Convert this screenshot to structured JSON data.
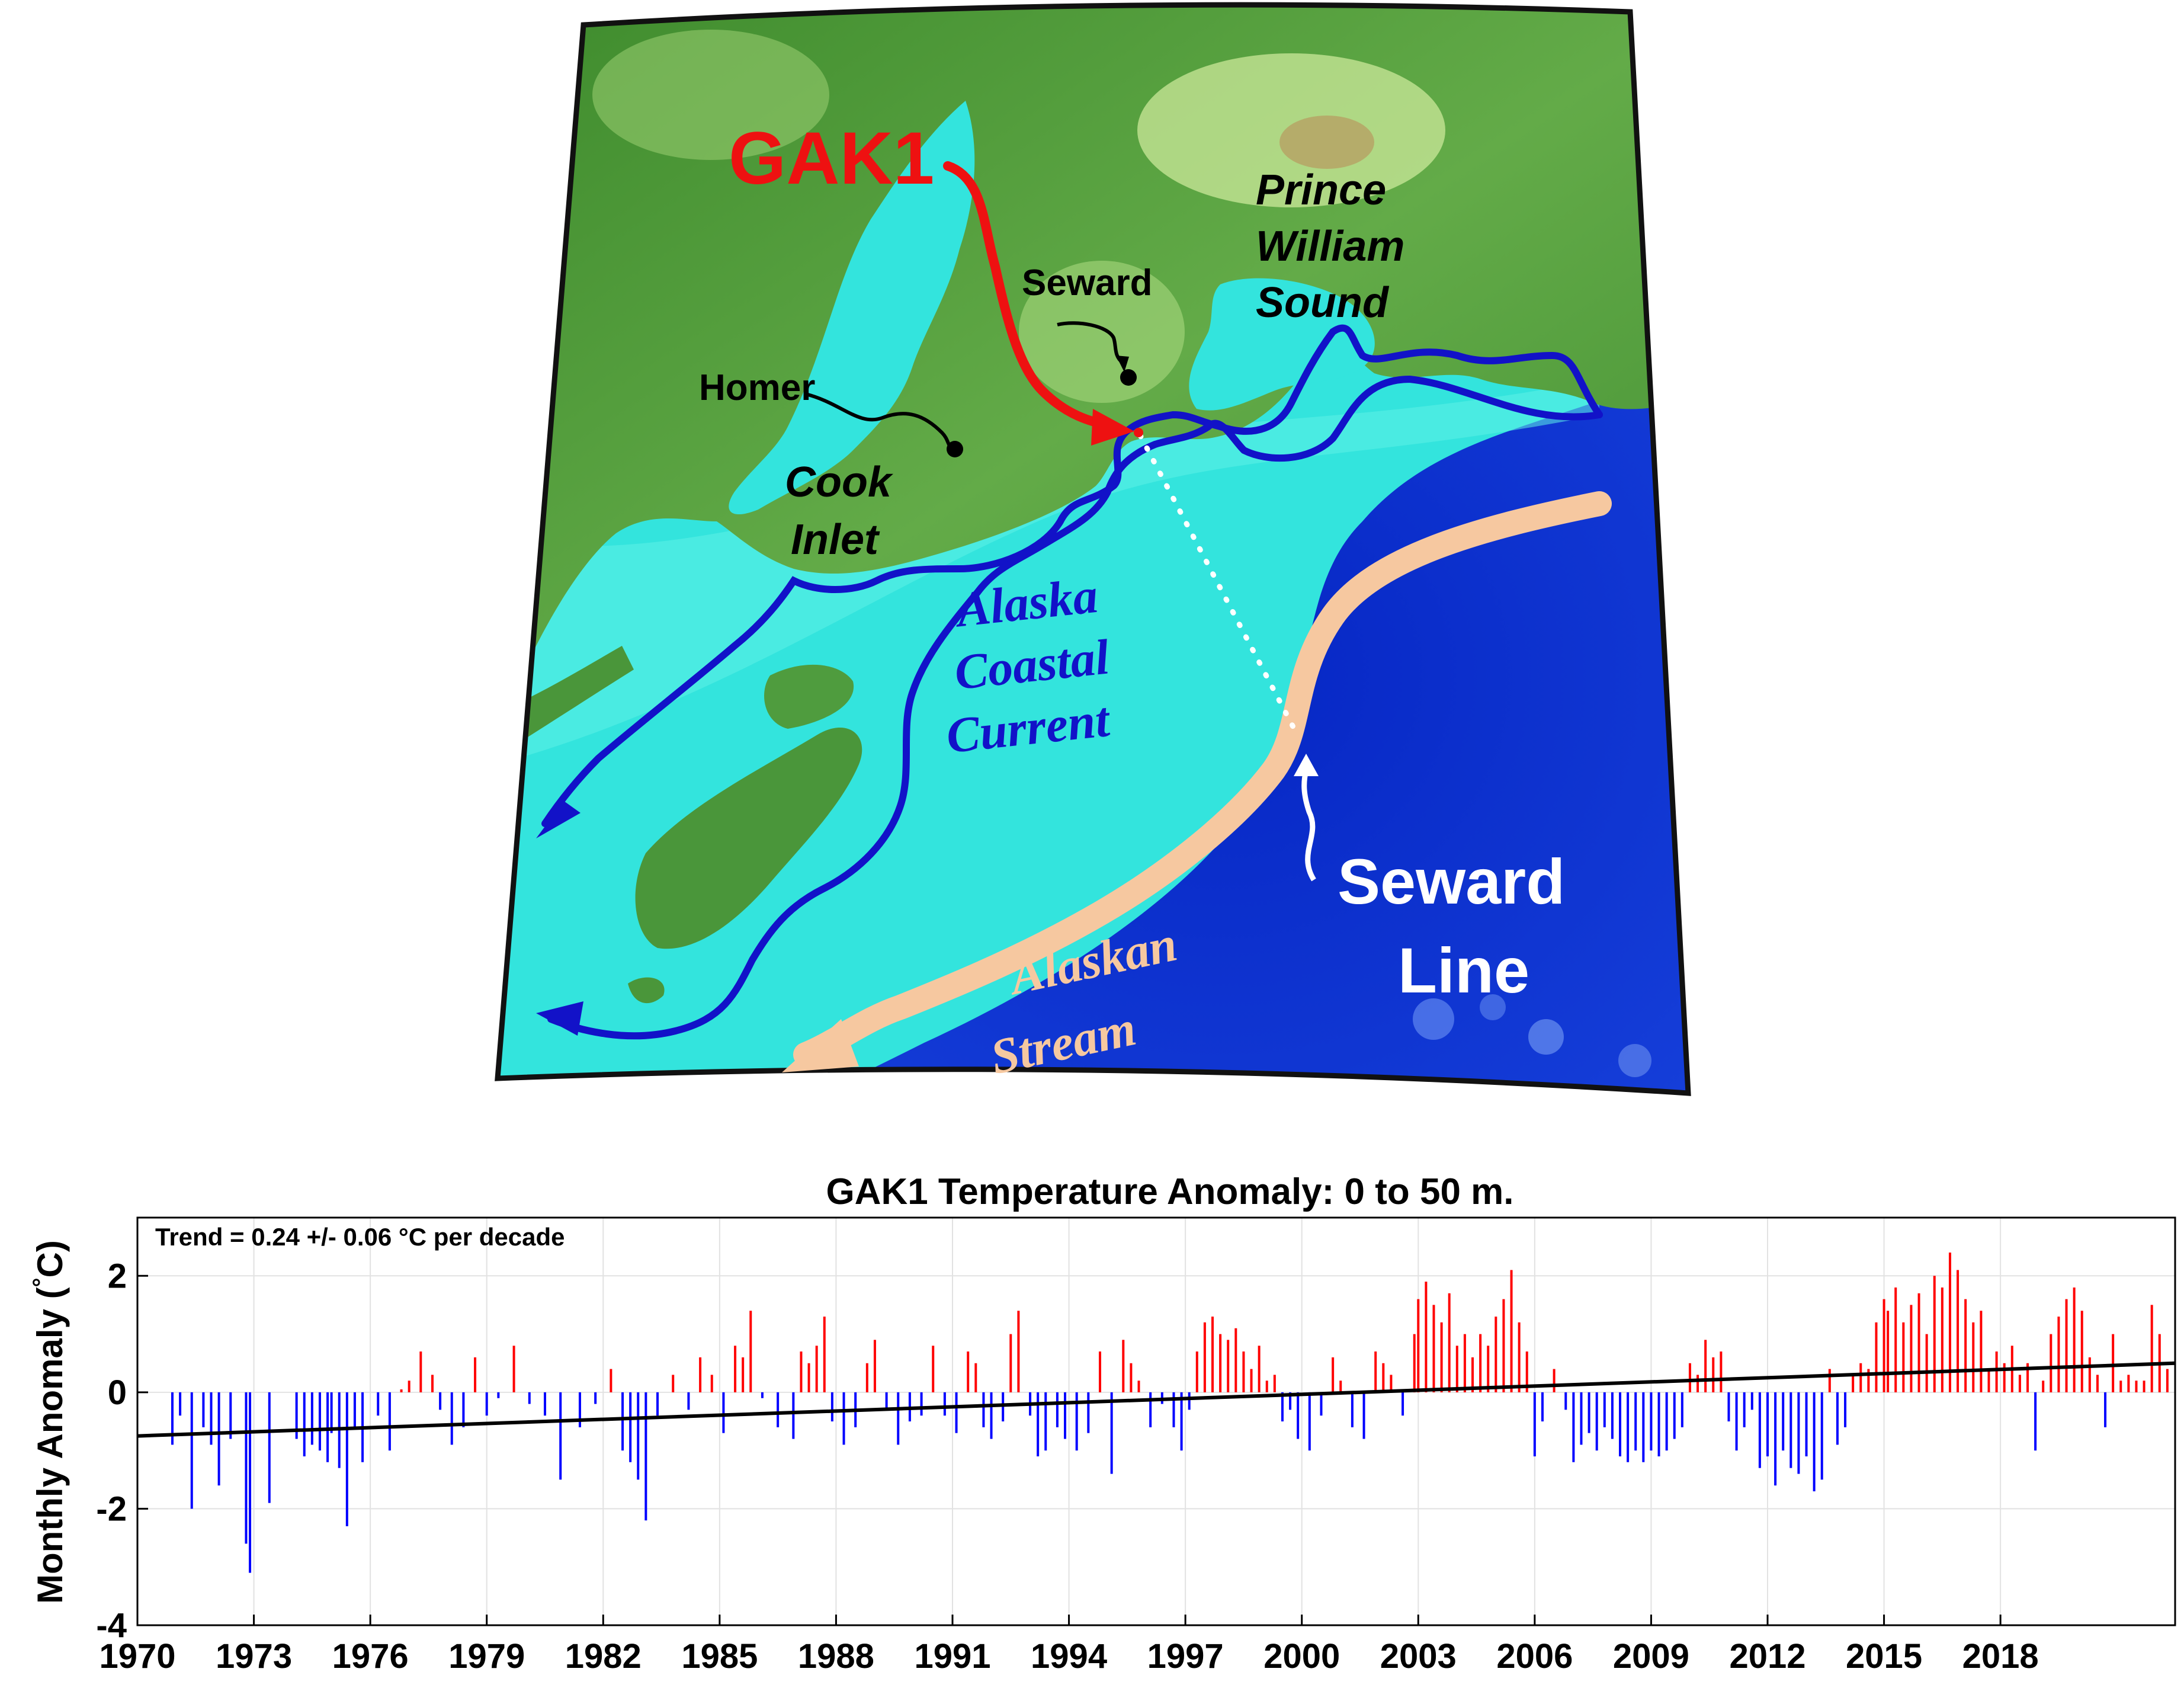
{
  "map": {
    "labels": {
      "gak1": "GAK1",
      "seward": "Seward",
      "homer": "Homer",
      "prince1": "Prince",
      "prince2": "William",
      "prince3": "Sound",
      "cook1": "Cook",
      "cook2": "Inlet",
      "acc1": "Alaska",
      "acc2": "Coastal",
      "acc3": "Current",
      "sline1": "Seward",
      "sline2": "Line",
      "stream1": "Alaskan",
      "stream2": "Stream"
    },
    "colors": {
      "land": "#4f9a3c",
      "land_high": "#d9eea8",
      "shelf": "#33e6e0",
      "deep": "#0a2fc8",
      "current": "#1010cc",
      "stream": "#f7c9a0",
      "gak1": "#ee1111"
    }
  },
  "chart_data": {
    "type": "bar",
    "title": "GAK1 Temperature Anomaly: 0 to 50 m.",
    "ylabel": "Monthly Anomaly (°C)",
    "ylabel_main": "Monthly Anomaly (",
    "ylabel_deg": "°",
    "ylabel_unit": "C)",
    "annotation": "Trend = 0.24 +/- 0.06 °C per decade",
    "xlim": [
      1970,
      2022.5
    ],
    "ylim": [
      -4,
      3
    ],
    "x_ticks": [
      "1970",
      "1973",
      "1976",
      "1979",
      "1982",
      "1985",
      "1988",
      "1991",
      "1994",
      "1997",
      "2000",
      "2003",
      "2006",
      "2009",
      "2012",
      "2015",
      "2018"
    ],
    "y_ticks": [
      "-4",
      "-2",
      "0",
      "2"
    ],
    "grid": true,
    "positive_color": "#ff0000",
    "negative_color": "#0000ff",
    "trend": {
      "x": [
        1970,
        2022.5
      ],
      "y": [
        -0.75,
        0.5
      ]
    },
    "data": [
      [
        1970.9,
        -0.9
      ],
      [
        1971.1,
        -0.4
      ],
      [
        1971.4,
        -2.0
      ],
      [
        1971.7,
        -0.6
      ],
      [
        1971.9,
        -0.9
      ],
      [
        1972.1,
        -1.6
      ],
      [
        1972.4,
        -0.8
      ],
      [
        1972.8,
        -2.6
      ],
      [
        1972.9,
        -3.1
      ],
      [
        1973.4,
        -1.9
      ],
      [
        1974.1,
        -0.8
      ],
      [
        1974.3,
        -1.1
      ],
      [
        1974.5,
        -0.9
      ],
      [
        1974.7,
        -1.0
      ],
      [
        1974.9,
        -1.2
      ],
      [
        1975.0,
        -0.7
      ],
      [
        1975.2,
        -1.3
      ],
      [
        1975.4,
        -2.3
      ],
      [
        1975.6,
        -0.6
      ],
      [
        1975.8,
        -1.2
      ],
      [
        1976.2,
        -0.4
      ],
      [
        1976.5,
        -1.0
      ],
      [
        1976.8,
        0.05
      ],
      [
        1977.0,
        0.2
      ],
      [
        1977.3,
        0.7
      ],
      [
        1977.6,
        0.3
      ],
      [
        1977.8,
        -0.3
      ],
      [
        1978.1,
        -0.9
      ],
      [
        1978.4,
        -0.6
      ],
      [
        1978.7,
        0.6
      ],
      [
        1979.0,
        -0.4
      ],
      [
        1979.3,
        -0.1
      ],
      [
        1979.7,
        0.8
      ],
      [
        1980.1,
        -0.2
      ],
      [
        1980.5,
        -0.4
      ],
      [
        1980.9,
        -1.5
      ],
      [
        1981.4,
        -0.6
      ],
      [
        1981.8,
        -0.2
      ],
      [
        1982.2,
        0.4
      ],
      [
        1982.5,
        -1.0
      ],
      [
        1982.7,
        -1.2
      ],
      [
        1982.9,
        -1.5
      ],
      [
        1983.1,
        -2.2
      ],
      [
        1983.4,
        -0.4
      ],
      [
        1983.8,
        0.3
      ],
      [
        1984.2,
        -0.3
      ],
      [
        1984.5,
        0.6
      ],
      [
        1984.8,
        0.3
      ],
      [
        1985.1,
        -0.7
      ],
      [
        1985.4,
        0.8
      ],
      [
        1985.6,
        0.6
      ],
      [
        1985.8,
        1.4
      ],
      [
        1986.1,
        -0.1
      ],
      [
        1986.5,
        -0.6
      ],
      [
        1986.9,
        -0.8
      ],
      [
        1987.1,
        0.7
      ],
      [
        1987.3,
        0.5
      ],
      [
        1987.5,
        0.8
      ],
      [
        1987.7,
        1.3
      ],
      [
        1987.9,
        -0.5
      ],
      [
        1988.2,
        -0.9
      ],
      [
        1988.5,
        -0.6
      ],
      [
        1988.8,
        0.5
      ],
      [
        1989.0,
        0.9
      ],
      [
        1989.3,
        -0.3
      ],
      [
        1989.6,
        -0.9
      ],
      [
        1989.9,
        -0.5
      ],
      [
        1990.2,
        -0.4
      ],
      [
        1990.5,
        0.8
      ],
      [
        1990.8,
        -0.4
      ],
      [
        1991.1,
        -0.7
      ],
      [
        1991.4,
        0.7
      ],
      [
        1991.6,
        0.5
      ],
      [
        1991.8,
        -0.6
      ],
      [
        1992.0,
        -0.8
      ],
      [
        1992.3,
        -0.5
      ],
      [
        1992.5,
        1.0
      ],
      [
        1992.7,
        1.4
      ],
      [
        1993.0,
        -0.4
      ],
      [
        1993.2,
        -1.1
      ],
      [
        1993.4,
        -1.0
      ],
      [
        1993.7,
        -0.6
      ],
      [
        1993.9,
        -0.8
      ],
      [
        1994.2,
        -1.0
      ],
      [
        1994.5,
        -0.7
      ],
      [
        1994.8,
        0.7
      ],
      [
        1995.1,
        -1.4
      ],
      [
        1995.4,
        0.9
      ],
      [
        1995.6,
        0.5
      ],
      [
        1995.8,
        0.2
      ],
      [
        1996.1,
        -0.6
      ],
      [
        1996.4,
        -0.2
      ],
      [
        1996.7,
        -0.6
      ],
      [
        1996.9,
        -1.0
      ],
      [
        1997.1,
        -0.3
      ],
      [
        1997.3,
        0.7
      ],
      [
        1997.5,
        1.2
      ],
      [
        1997.7,
        1.3
      ],
      [
        1997.9,
        1.0
      ],
      [
        1998.1,
        0.9
      ],
      [
        1998.3,
        1.1
      ],
      [
        1998.5,
        0.7
      ],
      [
        1998.7,
        0.4
      ],
      [
        1998.9,
        0.8
      ],
      [
        1999.1,
        0.2
      ],
      [
        1999.3,
        0.3
      ],
      [
        1999.5,
        -0.5
      ],
      [
        1999.7,
        -0.3
      ],
      [
        1999.9,
        -0.8
      ],
      [
        2000.2,
        -1.0
      ],
      [
        2000.5,
        -0.4
      ],
      [
        2000.8,
        0.6
      ],
      [
        2001.0,
        0.2
      ],
      [
        2001.3,
        -0.6
      ],
      [
        2001.6,
        -0.8
      ],
      [
        2001.9,
        0.7
      ],
      [
        2002.1,
        0.5
      ],
      [
        2002.3,
        0.3
      ],
      [
        2002.6,
        -0.4
      ],
      [
        2002.9,
        1.0
      ],
      [
        2003.0,
        1.6
      ],
      [
        2003.2,
        1.9
      ],
      [
        2003.4,
        1.5
      ],
      [
        2003.6,
        1.2
      ],
      [
        2003.8,
        1.7
      ],
      [
        2004.0,
        0.8
      ],
      [
        2004.2,
        1.0
      ],
      [
        2004.4,
        0.6
      ],
      [
        2004.6,
        1.0
      ],
      [
        2004.8,
        0.8
      ],
      [
        2005.0,
        1.3
      ],
      [
        2005.2,
        1.6
      ],
      [
        2005.4,
        2.1
      ],
      [
        2005.6,
        1.2
      ],
      [
        2005.8,
        0.7
      ],
      [
        2006.0,
        -1.1
      ],
      [
        2006.2,
        -0.5
      ],
      [
        2006.5,
        0.4
      ],
      [
        2006.8,
        -0.3
      ],
      [
        2007.0,
        -1.2
      ],
      [
        2007.2,
        -0.9
      ],
      [
        2007.4,
        -0.7
      ],
      [
        2007.6,
        -1.0
      ],
      [
        2007.8,
        -0.6
      ],
      [
        2008.0,
        -0.8
      ],
      [
        2008.2,
        -1.1
      ],
      [
        2008.4,
        -1.2
      ],
      [
        2008.6,
        -1.0
      ],
      [
        2008.8,
        -1.2
      ],
      [
        2009.0,
        -1.0
      ],
      [
        2009.2,
        -1.1
      ],
      [
        2009.4,
        -1.0
      ],
      [
        2009.6,
        -0.8
      ],
      [
        2009.8,
        -0.6
      ],
      [
        2010.0,
        0.5
      ],
      [
        2010.2,
        0.3
      ],
      [
        2010.4,
        0.9
      ],
      [
        2010.6,
        0.6
      ],
      [
        2010.8,
        0.7
      ],
      [
        2011.0,
        -0.5
      ],
      [
        2011.2,
        -1.0
      ],
      [
        2011.4,
        -0.6
      ],
      [
        2011.6,
        -0.3
      ],
      [
        2011.8,
        -1.3
      ],
      [
        2012.0,
        -1.1
      ],
      [
        2012.2,
        -1.6
      ],
      [
        2012.4,
        -1.0
      ],
      [
        2012.6,
        -1.3
      ],
      [
        2012.8,
        -1.4
      ],
      [
        2013.0,
        -1.1
      ],
      [
        2013.2,
        -1.7
      ],
      [
        2013.4,
        -1.5
      ],
      [
        2013.6,
        0.4
      ],
      [
        2013.8,
        -0.9
      ],
      [
        2014.0,
        -0.6
      ],
      [
        2014.2,
        0.3
      ],
      [
        2014.4,
        0.5
      ],
      [
        2014.6,
        0.4
      ],
      [
        2014.8,
        1.2
      ],
      [
        2015.0,
        1.6
      ],
      [
        2015.1,
        1.4
      ],
      [
        2015.3,
        1.8
      ],
      [
        2015.5,
        1.2
      ],
      [
        2015.7,
        1.5
      ],
      [
        2015.9,
        1.7
      ],
      [
        2016.1,
        1.0
      ],
      [
        2016.3,
        2.0
      ],
      [
        2016.5,
        1.8
      ],
      [
        2016.7,
        2.4
      ],
      [
        2016.9,
        2.1
      ],
      [
        2017.1,
        1.6
      ],
      [
        2017.3,
        1.2
      ],
      [
        2017.5,
        1.4
      ],
      [
        2017.7,
        0.4
      ],
      [
        2017.9,
        0.7
      ],
      [
        2018.1,
        0.5
      ],
      [
        2018.3,
        0.8
      ],
      [
        2018.5,
        0.3
      ],
      [
        2018.7,
        0.5
      ],
      [
        2018.9,
        -1.0
      ],
      [
        2019.1,
        0.2
      ],
      [
        2019.3,
        1.0
      ],
      [
        2019.5,
        1.3
      ],
      [
        2019.7,
        1.6
      ],
      [
        2019.9,
        1.8
      ],
      [
        2020.1,
        1.4
      ],
      [
        2020.3,
        0.6
      ],
      [
        2020.5,
        0.3
      ],
      [
        2020.7,
        -0.6
      ],
      [
        2020.9,
        1.0
      ],
      [
        2021.1,
        0.2
      ],
      [
        2021.3,
        0.3
      ],
      [
        2021.5,
        0.2
      ],
      [
        2021.7,
        0.2
      ],
      [
        2021.9,
        1.5
      ],
      [
        2022.1,
        1.0
      ],
      [
        2022.3,
        0.4
      ]
    ]
  }
}
